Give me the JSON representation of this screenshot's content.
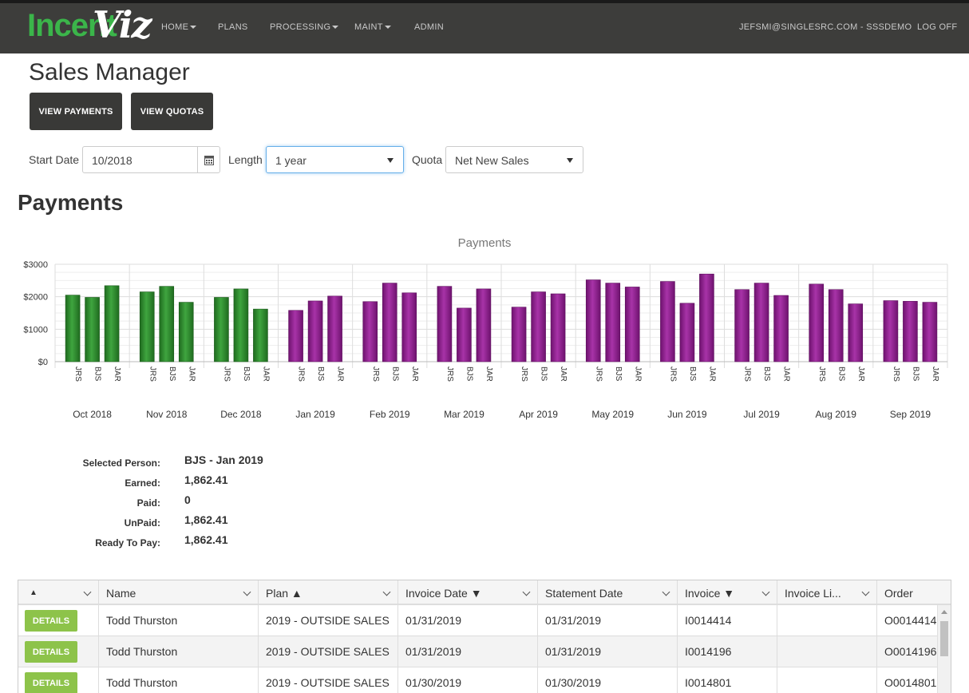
{
  "app": {
    "logo_text_1": "Incent",
    "logo_text_2": "Viz",
    "nav": [
      {
        "label": "HOME",
        "dropdown": true
      },
      {
        "label": "PLANS",
        "dropdown": false
      },
      {
        "label": "PROCESSING",
        "dropdown": true
      },
      {
        "label": "MAINT",
        "dropdown": true
      },
      {
        "label": "ADMIN",
        "dropdown": false
      }
    ],
    "user": "JEFSMI@SINGLESRC.COM - SSSDEMO",
    "logoff": "LOG OFF"
  },
  "page": {
    "title": "Sales Manager",
    "view_payments": "VIEW PAYMENTS",
    "view_quotas": "VIEW QUOTAS",
    "filters": {
      "start_date_label": "Start Date",
      "start_date_value": "10/2018",
      "length_label": "Length",
      "length_value": "1 year",
      "quota_label": "Quota",
      "quota_value": "Net New Sales"
    },
    "section_title": "Payments"
  },
  "chart_data": {
    "type": "bar",
    "title": "Payments",
    "ylabel": "",
    "xlabel": "",
    "ylim": [
      0,
      3000
    ],
    "yticks": [
      "$0",
      "$1000",
      "$2000",
      "$3000"
    ],
    "grid": true,
    "groups": [
      "Oct 2018",
      "Nov 2018",
      "Dec 2018",
      "Jan 2019",
      "Feb 2019",
      "Mar 2019",
      "Apr 2019",
      "May 2019",
      "Jun 2019",
      "Jul 2019",
      "Aug 2019",
      "Sep 2019"
    ],
    "persons": [
      "JRS",
      "BJS",
      "JAR"
    ],
    "values": [
      [
        2050,
        1980,
        2340
      ],
      [
        2150,
        2320,
        1830
      ],
      [
        1980,
        2240,
        1620
      ],
      [
        1580,
        1870,
        2020
      ],
      [
        1850,
        2420,
        2120
      ],
      [
        2320,
        1650,
        2240
      ],
      [
        1680,
        2150,
        2090
      ],
      [
        2520,
        2420,
        2300
      ],
      [
        2470,
        1800,
        2700
      ],
      [
        2220,
        2420,
        2040
      ],
      [
        2390,
        2220,
        1780
      ],
      [
        1880,
        1860,
        1830
      ]
    ],
    "colors": {
      "past": "#2e8b2e",
      "future": "#8e1f8e"
    },
    "past_group_count": 3
  },
  "selection": {
    "selected_person_label": "Selected Person:",
    "selected_person": "BJS - Jan 2019",
    "earned_label": "Earned:",
    "earned": "1,862.41",
    "paid_label": "Paid:",
    "paid": "0",
    "unpaid_label": "UnPaid:",
    "unpaid": "1,862.41",
    "ready_label": "Ready To Pay:",
    "ready": "1,862.41"
  },
  "grid": {
    "columns": [
      "▲",
      "Name",
      "Plan ▲",
      "Invoice Date ▼",
      "Statement Date",
      "Invoice ▼",
      "Invoice Li...",
      "Order"
    ],
    "details_label": "DETAILS",
    "rows": [
      {
        "name": "Todd Thurston",
        "plan": "2019 - OUTSIDE SALES",
        "invoice_date": "01/31/2019",
        "statement_date": "01/31/2019",
        "invoice": "I0014414",
        "invoice_line": "",
        "order": "O0014414"
      },
      {
        "name": "Todd Thurston",
        "plan": "2019 - OUTSIDE SALES",
        "invoice_date": "01/31/2019",
        "statement_date": "01/31/2019",
        "invoice": "I0014196",
        "invoice_line": "",
        "order": "O0014196"
      },
      {
        "name": "Todd Thurston",
        "plan": "2019 - OUTSIDE SALES",
        "invoice_date": "01/30/2019",
        "statement_date": "01/30/2019",
        "invoice": "I0014801",
        "invoice_line": "",
        "order": "O0014801"
      }
    ]
  }
}
